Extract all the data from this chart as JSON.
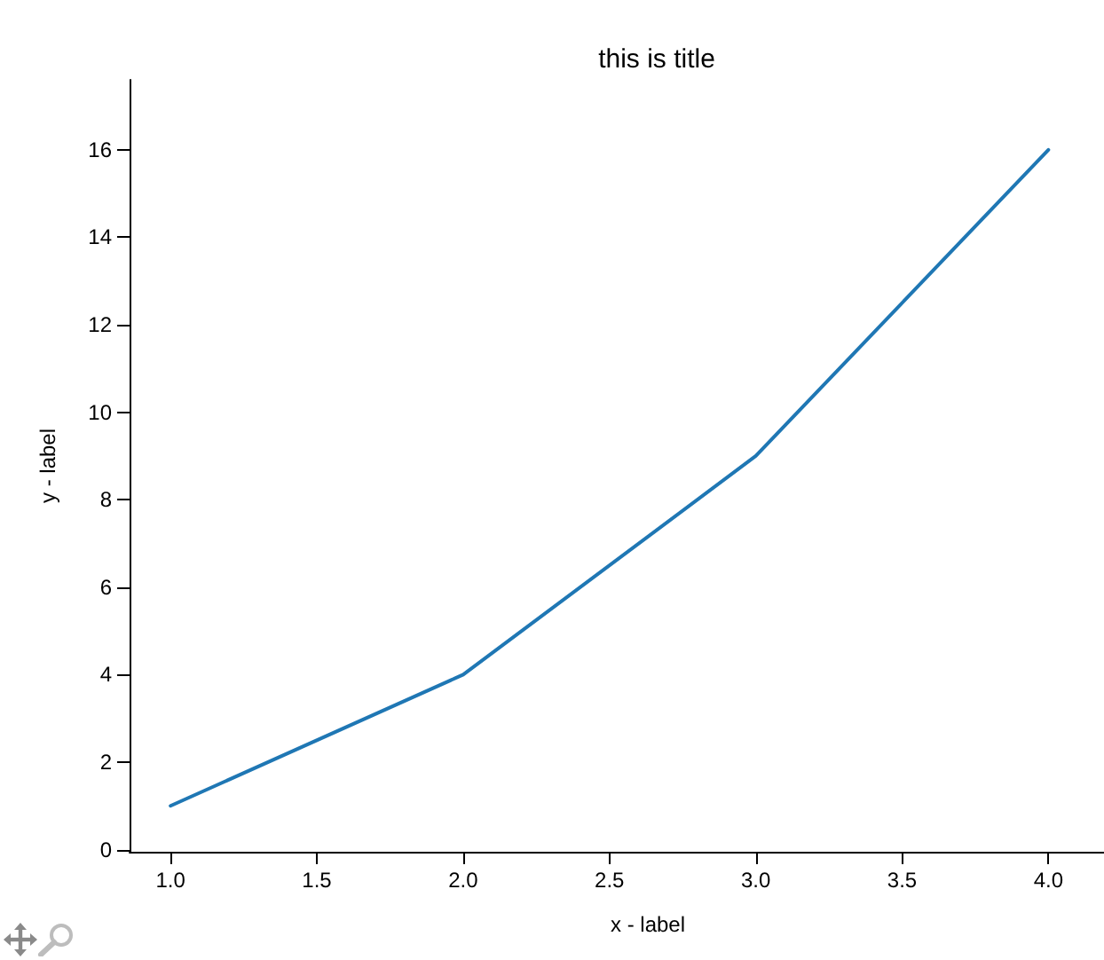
{
  "chart_data": {
    "type": "line",
    "title": "this is title",
    "xlabel": "x - label",
    "ylabel": "y - label",
    "x": [
      1,
      2,
      3,
      4
    ],
    "series": [
      {
        "color": "#1f77b4",
        "values": [
          1,
          4,
          9,
          16
        ]
      }
    ],
    "xlim": [
      0.86,
      4.19
    ],
    "xticks": [
      {
        "value": 1,
        "label": "1.0"
      },
      1.5,
      {
        "value": 2,
        "label": "2.0"
      },
      2.5,
      {
        "value": 3,
        "label": "3.0"
      },
      3.5,
      {
        "value": 4,
        "label": "4.0"
      }
    ],
    "ylim": [
      -0.05,
      17.6
    ],
    "yticks": [
      0,
      2,
      4,
      6,
      8,
      10,
      12,
      14,
      16
    ],
    "marker": "none",
    "line_style": "solid"
  }
}
